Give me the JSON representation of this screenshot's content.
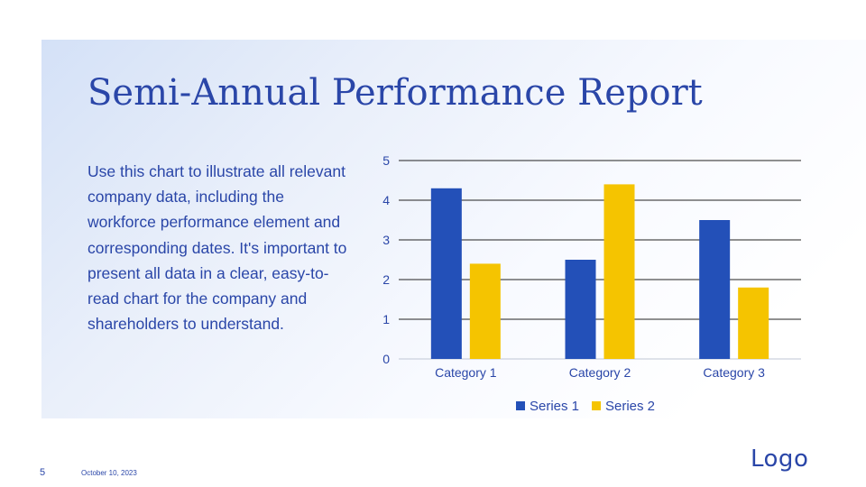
{
  "slide": {
    "title": "Semi-Annual Performance Report",
    "body": "Use this chart to illustrate all relevant company data, including the workforce performance element and corresponding dates. It's important to present all data in a clear, easy-to-read chart for the company and shareholders to understand.",
    "page_number": "5",
    "date": "October 10, 2023",
    "logo": "Logo"
  },
  "colors": {
    "text": "#2a46a8",
    "series1": "#2350b8",
    "series2": "#f5c400",
    "gridline": "#222222"
  },
  "chart_data": {
    "type": "bar",
    "categories": [
      "Category 1",
      "Category 2",
      "Category 3"
    ],
    "series": [
      {
        "name": "Series 1",
        "values": [
          4.3,
          2.5,
          3.5
        ]
      },
      {
        "name": "Series 2",
        "values": [
          2.4,
          4.4,
          1.8
        ]
      }
    ],
    "ylim": [
      0,
      5
    ],
    "yticks": [
      "0",
      "1",
      "2",
      "3",
      "4",
      "5"
    ],
    "grid": true,
    "legend": "bottom"
  }
}
